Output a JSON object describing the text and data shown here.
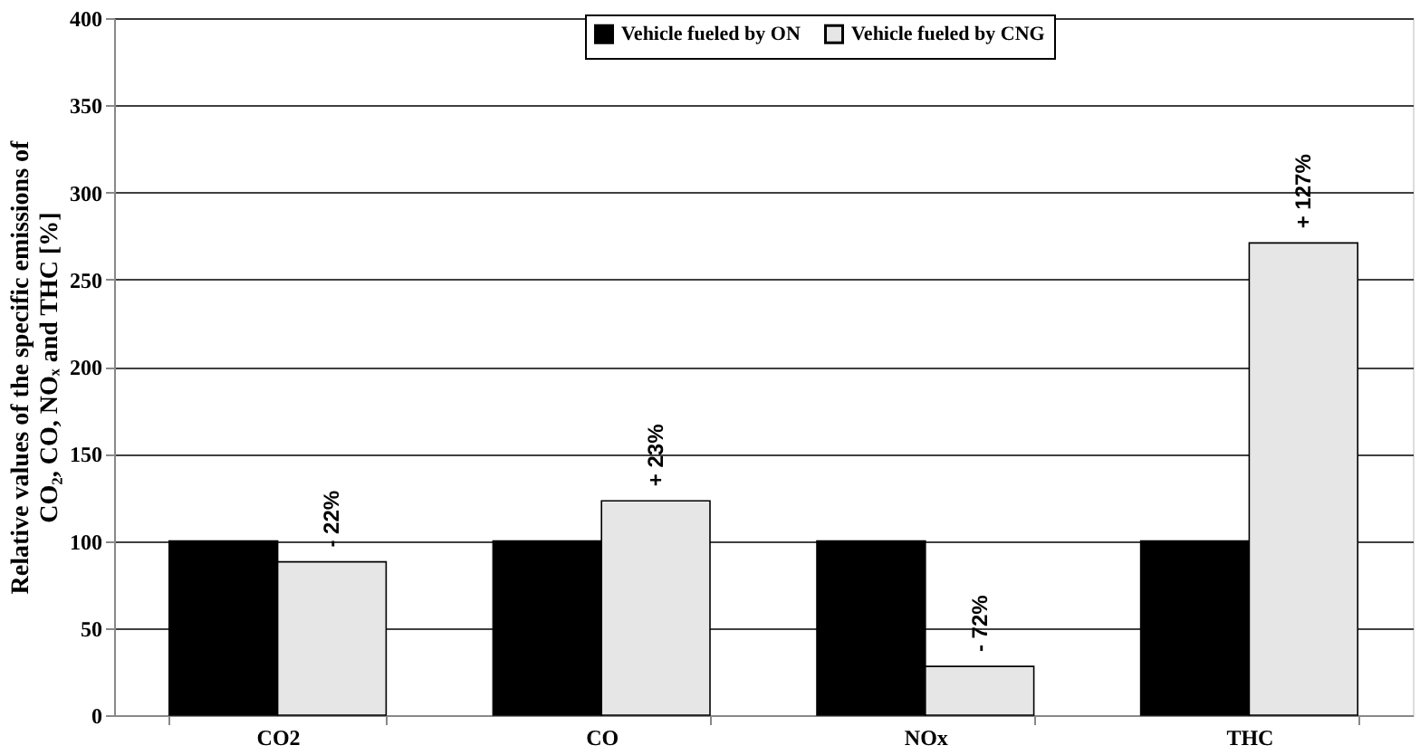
{
  "chart_data": {
    "type": "bar",
    "ylabel": [
      "Relative values of the specific emissions of",
      "CO₂, CO, NOₓ and THC [%]"
    ],
    "categories": [
      "CO2",
      "CO",
      "NOx",
      "THC"
    ],
    "series": [
      {
        "name": "Vehicle fueled by ON",
        "color": "#000000",
        "values": [
          100,
          100,
          100,
          100
        ]
      },
      {
        "name": "Vehicle fueled by CNG",
        "color": "#e6e6e6",
        "values": [
          88,
          123,
          28,
          271
        ]
      }
    ],
    "annotations": [
      "- 22%",
      "+ 23%",
      "- 72%",
      "+ 127%"
    ],
    "ylim": [
      0,
      400
    ],
    "yticks": [
      0,
      50,
      100,
      150,
      200,
      250,
      300,
      350,
      400
    ],
    "grid": "y",
    "legend": "top"
  }
}
